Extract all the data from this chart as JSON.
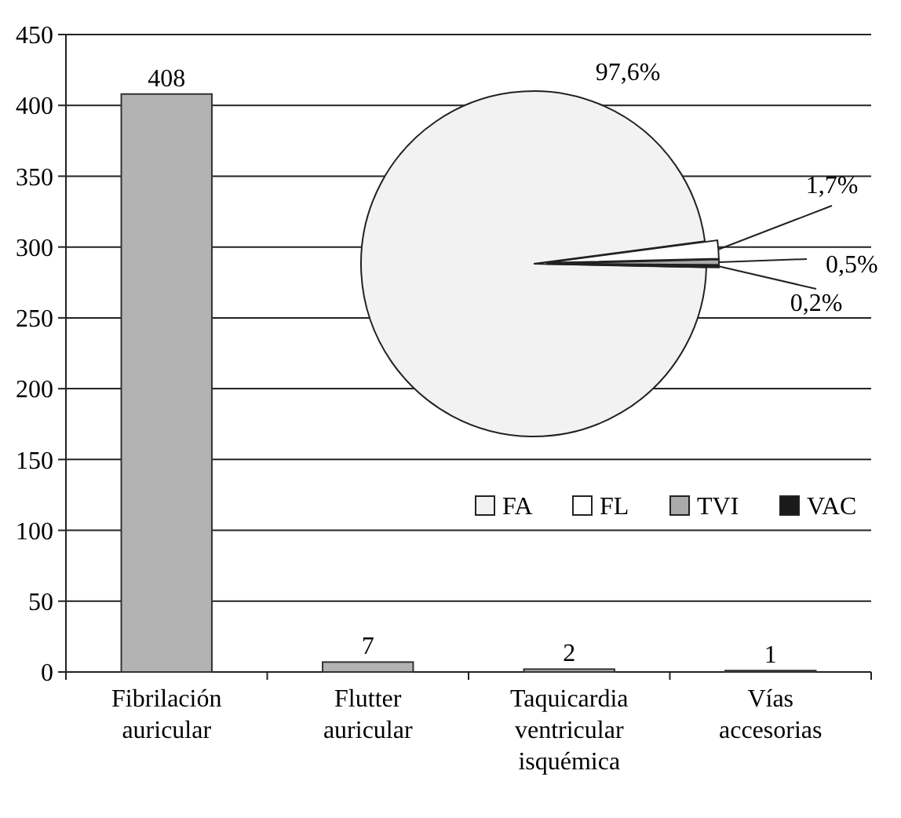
{
  "chart_data": [
    {
      "type": "bar",
      "categories": [
        "Fibrilación auricular",
        "Flutter auricular",
        "Taquicardia ventricular isquémica",
        "Vías accesorias"
      ],
      "values": [
        408,
        7,
        2,
        1
      ],
      "color": "#b3b3b3",
      "ylim": [
        0,
        450
      ],
      "yticks": [
        0,
        50,
        100,
        150,
        200,
        250,
        300,
        350,
        400,
        450
      ],
      "grid": "y",
      "data_labels": true
    },
    {
      "type": "pie",
      "categories": [
        "FA",
        "FL",
        "TVI",
        "VAC"
      ],
      "values": [
        97.6,
        1.7,
        0.5,
        0.2
      ],
      "colors": [
        "#f2f2f2",
        "#ffffff",
        "#aaaaaa",
        "#1a1a1a"
      ],
      "value_labels": [
        "97,6%",
        "1,7%",
        "0,5%",
        "0,2%"
      ],
      "legend": "bottom right"
    }
  ]
}
